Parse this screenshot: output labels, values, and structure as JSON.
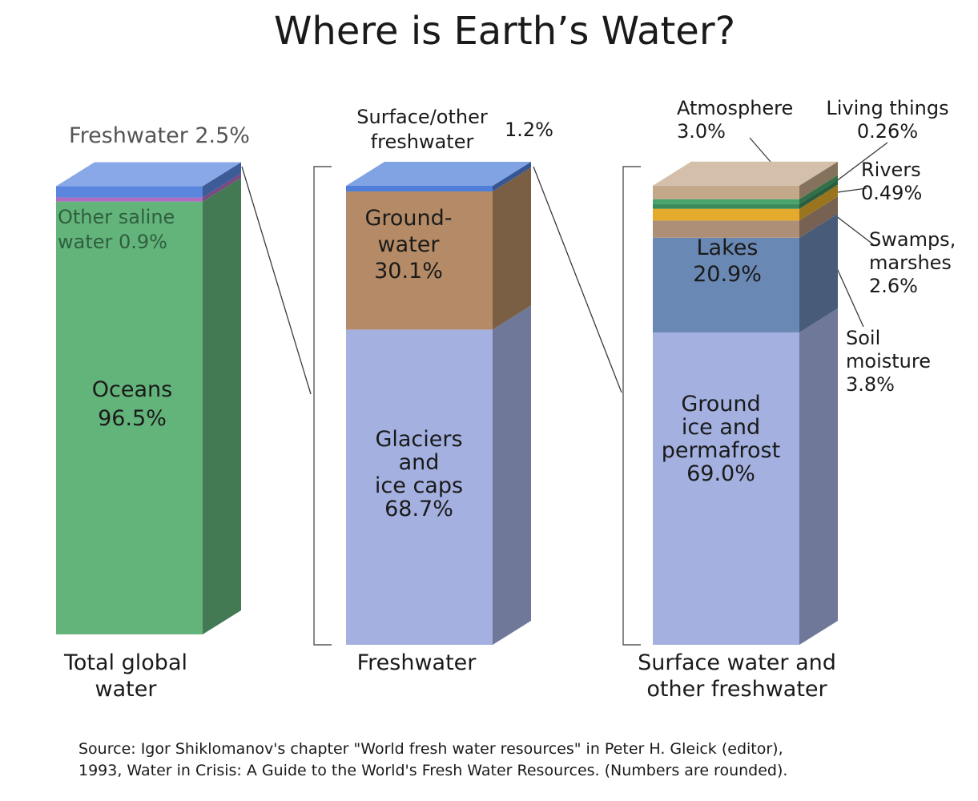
{
  "chart_data": {
    "type": "bar",
    "title": "Where is Earth’s Water?",
    "stacked": true,
    "style": "3d-stacked-columns",
    "columns": [
      {
        "name": "Total global water",
        "label_lines": [
          "Total global",
          "water"
        ],
        "segments": [
          {
            "name": "Oceans",
            "value": 96.5,
            "color": "#63b47a",
            "label_lines": [
              "Oceans",
              "96.5%"
            ]
          },
          {
            "name": "Other saline water",
            "value": 0.9,
            "color": "#b06cc0",
            "label_lines": [
              "Other saline",
              "water 0.9%"
            ]
          },
          {
            "name": "Freshwater",
            "value": 2.5,
            "color": "#5a86dd",
            "label_lines": [
              "Freshwater 2.5%"
            ]
          }
        ]
      },
      {
        "name": "Freshwater",
        "label_lines": [
          "Freshwater"
        ],
        "segments": [
          {
            "name": "Glaciers and ice caps",
            "value": 68.7,
            "color": "#a3b0e0",
            "label_lines": [
              "Glaciers",
              "and",
              "ice caps",
              "68.7%"
            ]
          },
          {
            "name": "Groundwater",
            "value": 30.1,
            "color": "#b48b66",
            "label_lines": [
              "Ground-",
              "water",
              "30.1%"
            ]
          },
          {
            "name": "Surface/other freshwater",
            "value": 1.2,
            "color": "#4f7fd8",
            "label_lines": [
              "Surface/other",
              "freshwater"
            ],
            "value_label": "1.2%"
          }
        ]
      },
      {
        "name": "Surface water and other freshwater",
        "label_lines": [
          "Surface water and",
          "other freshwater"
        ],
        "segments": [
          {
            "name": "Ground ice and permafrost",
            "value": 69.0,
            "color": "#a3b0e0",
            "label_lines": [
              "Ground",
              "ice and",
              "permafrost",
              "69.0%"
            ]
          },
          {
            "name": "Lakes",
            "value": 20.9,
            "color": "#6a88b4",
            "label_lines": [
              "Lakes",
              "20.9%"
            ]
          },
          {
            "name": "Soil moisture",
            "value": 3.8,
            "color": "#ad8f78",
            "label_lines": [
              "Soil",
              "moisture",
              "3.8%"
            ]
          },
          {
            "name": "Swamps, marshes",
            "value": 2.6,
            "color": "#e3aa2c",
            "label_lines": [
              "Swamps,",
              "marshes",
              "2.6%"
            ]
          },
          {
            "name": "Rivers",
            "value": 0.49,
            "color": "#3a8a5c",
            "label_lines": [
              "Rivers",
              "0.49%"
            ]
          },
          {
            "name": "Living things",
            "value": 0.26,
            "color": "#49a46a",
            "label_lines": [
              "Living things",
              "0.26%"
            ]
          },
          {
            "name": "Atmosphere",
            "value": 3.0,
            "color": "#c3a889",
            "label_lines": [
              "Atmosphere",
              "3.0%"
            ]
          }
        ]
      }
    ],
    "source_lines": [
      "Source: Igor Shiklomanov's chapter \"World fresh water resources\" in Peter H. Gleick (editor),",
      "1993, Water in Crisis: A Guide to the World's Fresh Water Resources. (Numbers are rounded)."
    ]
  }
}
